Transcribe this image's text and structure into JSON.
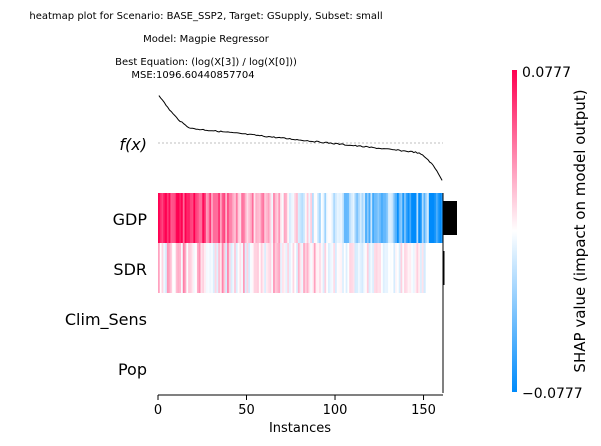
{
  "chart_data": {
    "type": "heatmap",
    "title_lines": [
      "heatmap plot for Scenario: BASE_SSP2, Target: GSupply, Subset: small",
      "Model: Magpie Regressor",
      "Best Equation: (log(X[3]) / log(X[0]))",
      "MSE:1096.60440857704"
    ],
    "fx_label": "f(x)",
    "xlabel": "Instances",
    "x_ticks": [
      0,
      50,
      100,
      150
    ],
    "instances": 161,
    "features": [
      "GDP",
      "SDR",
      "Clim_Sens",
      "Pop"
    ],
    "mean_abs_shap": [
      0.0777,
      0.0082,
      0.0,
      0.0
    ],
    "gdp_shap_pattern": "decreasing from +0.0777 at instance 0 to -0.0777 at instance 160",
    "sdr_shap_pattern": "small alternating values near zero, mostly positive for instances 0-90",
    "fx_pattern": "monotonic decreasing curve across instances",
    "colorbar": {
      "label": "SHAP value (impact on model output)",
      "max_label": "0.0777",
      "min_label": "−0.0777",
      "vmax": 0.0777,
      "vmin": -0.0777,
      "high_color": "#ff0051",
      "low_color": "#008bfb",
      "mid_color": "#ffffff"
    }
  }
}
